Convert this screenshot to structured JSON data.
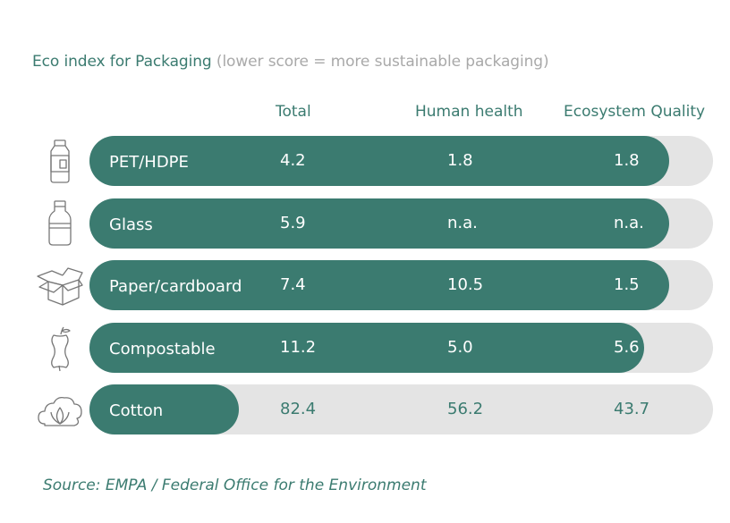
{
  "title": {
    "main": "Eco index for Packaging",
    "sub": "(lower score = more sustainable packaging)"
  },
  "columns": [
    "Total",
    "Human health",
    "Ecosystem Quality"
  ],
  "source": "Source: EMPA / Federal Office for the Environment",
  "colors": {
    "accent": "#3b7b70",
    "track": "#e4e4e4",
    "text_on_fill": "#ffffff",
    "subtitle": "#a9a9a9"
  },
  "rows": [
    {
      "icon": "bottle-icon",
      "label": "PET/HDPE",
      "total": "4.2",
      "human_health": "1.8",
      "ecosystem_quality": "1.8"
    },
    {
      "icon": "milk-bottle-icon",
      "label": "Glass",
      "total": "5.9",
      "human_health": "n.a.",
      "ecosystem_quality": "n.a."
    },
    {
      "icon": "box-icon",
      "label": "Paper/cardboard",
      "total": "7.4",
      "human_health": "10.5",
      "ecosystem_quality": "1.5"
    },
    {
      "icon": "apple-core-icon",
      "label": "Compostable",
      "total": "11.2",
      "human_health": "5.0",
      "ecosystem_quality": "5.6"
    },
    {
      "icon": "cotton-icon",
      "label": "Cotton",
      "total": "82.4",
      "human_health": "56.2",
      "ecosystem_quality": "43.7"
    }
  ],
  "chart_data": {
    "type": "table",
    "title": "Eco index for Packaging",
    "subtitle": "(lower score = more sustainable packaging)",
    "columns": [
      "Total",
      "Human health",
      "Ecosystem Quality"
    ],
    "categories": [
      "PET/HDPE",
      "Glass",
      "Paper/cardboard",
      "Compostable",
      "Cotton"
    ],
    "series": [
      {
        "name": "Total",
        "values": [
          4.2,
          5.9,
          7.4,
          11.2,
          82.4
        ]
      },
      {
        "name": "Human health",
        "values": [
          1.8,
          null,
          10.5,
          5.0,
          56.2
        ]
      },
      {
        "name": "Ecosystem Quality",
        "values": [
          1.8,
          null,
          1.5,
          5.6,
          43.7
        ]
      }
    ],
    "fill_fraction": [
      0.93,
      0.93,
      0.93,
      0.89,
      0.24
    ]
  }
}
